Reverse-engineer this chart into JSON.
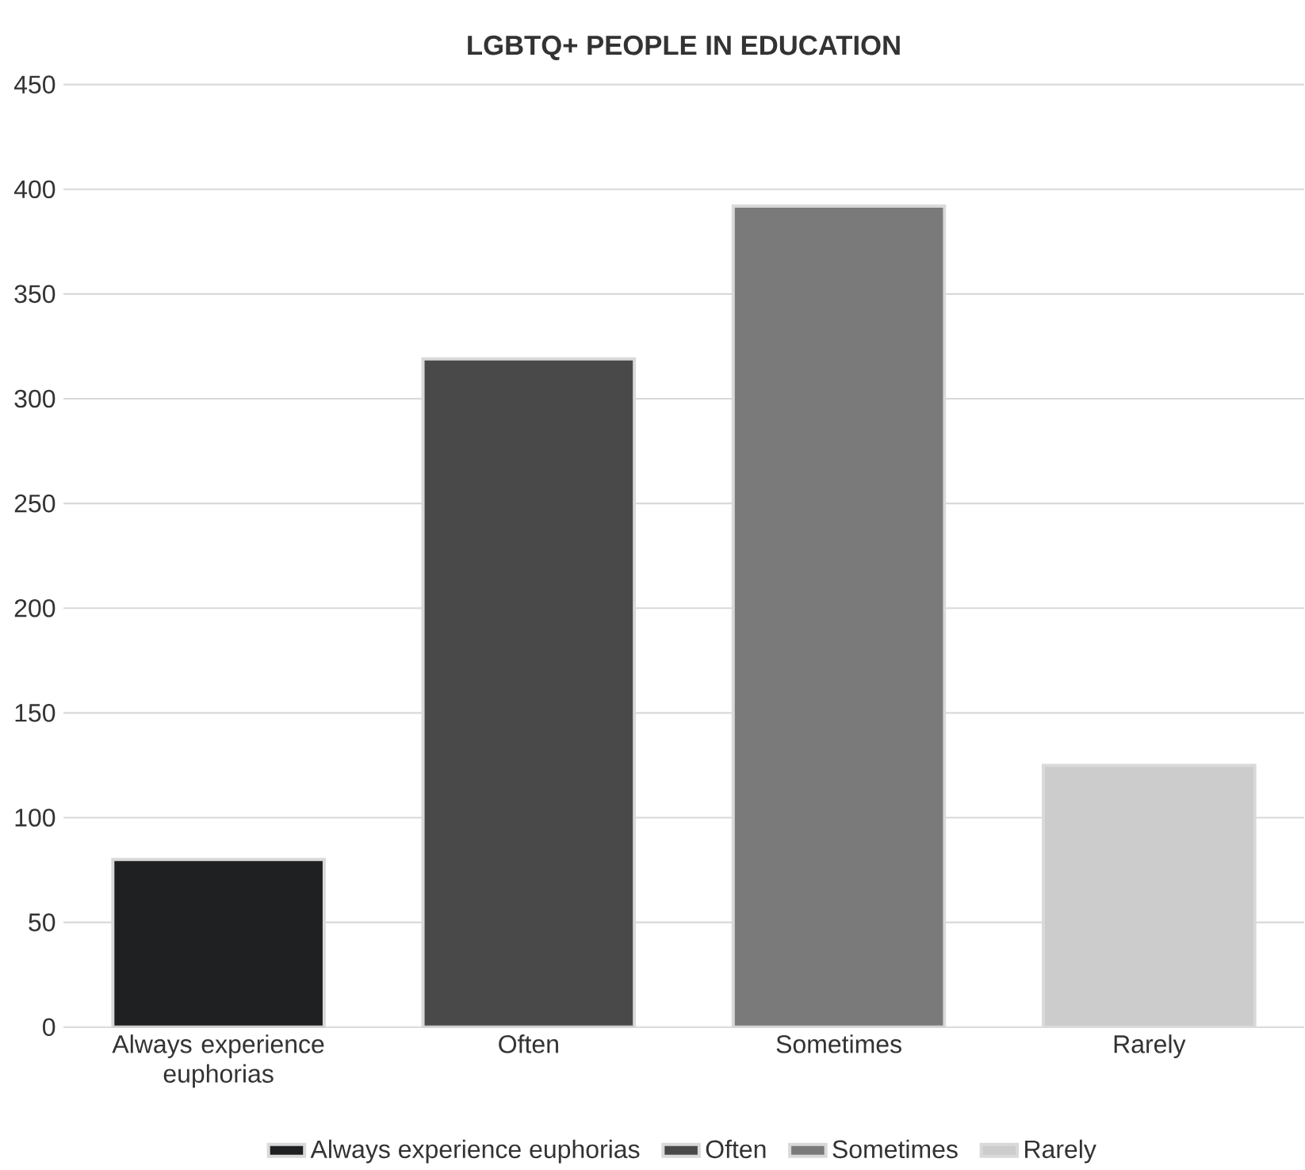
{
  "chart_data": {
    "type": "bar",
    "title": "LGBTQ+ PEOPLE IN EDUCATION",
    "categories": [
      "Always experience euphorias",
      "Often",
      "Sometimes",
      "Rarely"
    ],
    "series": [
      {
        "name": "Always experience euphorias",
        "color": "#1f2022",
        "values": [
          80,
          null,
          null,
          null
        ]
      },
      {
        "name": "Often",
        "color": "#494949",
        "values": [
          null,
          319,
          null,
          null
        ]
      },
      {
        "name": "Sometimes",
        "color": "#7a7a7a",
        "values": [
          null,
          null,
          392,
          null
        ]
      },
      {
        "name": "Rarely",
        "color": "#cccccc",
        "values": [
          null,
          null,
          null,
          125
        ]
      }
    ],
    "ylim": [
      0,
      450
    ],
    "yticks": [
      0,
      50,
      100,
      150,
      200,
      250,
      300,
      350,
      400,
      450
    ],
    "grid": "y",
    "legend": "bottom"
  }
}
